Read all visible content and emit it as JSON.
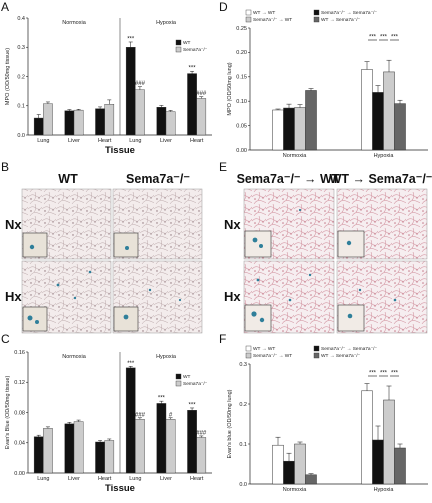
{
  "panels": {
    "A": "A",
    "B": "B",
    "C": "C",
    "D": "D",
    "E": "E",
    "F": "F"
  },
  "micro": {
    "B": {
      "col_labels": [
        "WT",
        "Sema7a⁻/⁻"
      ],
      "row_labels": [
        "Nx",
        "Hx"
      ]
    },
    "E": {
      "col_labels": [
        "Sema7a⁻/⁻ → WT",
        "WT → Sema7a⁻/⁻"
      ],
      "row_labels": [
        "Nx",
        "Hx"
      ]
    }
  },
  "colors": {
    "black": "#111111",
    "light_gray": "#cccccc",
    "white": "#ffffff",
    "dark_gray": "#666666"
  },
  "chart_data": [
    {
      "id": "A",
      "type": "bar",
      "ylabel": "MPO (OD/50mg tissue)",
      "xlabel": "Tissue",
      "ylim": [
        0,
        0.4
      ],
      "yticks": [
        "0.0",
        "0.1",
        "0.2",
        "0.3",
        "0.4"
      ],
      "groups": [
        "Normoxia",
        "Hypoxia"
      ],
      "categories": [
        "Lung",
        "Liver",
        "Heart",
        "Lung",
        "Liver",
        "Heart"
      ],
      "series": [
        {
          "name": "WT",
          "values": [
            0.058,
            0.083,
            0.09,
            0.3,
            0.095,
            0.21
          ],
          "errors": [
            0.012,
            0.004,
            0.006,
            0.018,
            0.006,
            0.008
          ],
          "labels": [
            "",
            "",
            "",
            "***",
            "",
            "***"
          ]
        },
        {
          "name": "Sema7a⁻/⁻",
          "values": [
            0.107,
            0.085,
            0.105,
            0.155,
            0.08,
            0.125
          ],
          "errors": [
            0.006,
            0.003,
            0.015,
            0.01,
            0.004,
            0.006
          ],
          "labels": [
            "",
            "",
            "",
            "###",
            "",
            "###"
          ]
        }
      ]
    },
    {
      "id": "C",
      "type": "bar",
      "ylabel": "Evan’s Blue (OD/50mg tissue)",
      "xlabel": "Tissue",
      "ylim": [
        0,
        0.16
      ],
      "yticks": [
        "0.00",
        "0.04",
        "0.08",
        "0.12",
        "0.16"
      ],
      "groups": [
        "Normoxia",
        "Hypoxia"
      ],
      "categories": [
        "Lung",
        "Liver",
        "Heart",
        "Lung",
        "Liver",
        "Heart"
      ],
      "series": [
        {
          "name": "WT",
          "values": [
            0.048,
            0.065,
            0.041,
            0.139,
            0.092,
            0.083
          ],
          "errors": [
            0.002,
            0.002,
            0.002,
            0.002,
            0.003,
            0.003
          ],
          "labels": [
            "",
            "",
            "",
            "***",
            "***",
            "***"
          ]
        },
        {
          "name": "Sema7a⁻/⁻",
          "values": [
            0.059,
            0.068,
            0.043,
            0.071,
            0.071,
            0.047
          ],
          "errors": [
            0.002,
            0.002,
            0.002,
            0.002,
            0.002,
            0.002
          ],
          "labels": [
            "",
            "",
            "",
            "###",
            "#",
            "###"
          ]
        }
      ]
    },
    {
      "id": "D",
      "type": "bar",
      "ylabel": "MPO (OD/50mg lung)",
      "ylim": [
        0,
        0.25
      ],
      "yticks": [
        "0.00",
        "0.05",
        "0.10",
        "0.15",
        "0.20",
        "0.25"
      ],
      "categories": [
        "Normoxia",
        "Hypoxia"
      ],
      "series": [
        {
          "name": "WT → WT",
          "values": [
            0.082,
            0.165
          ],
          "errors": [
            0.002,
            0.016
          ]
        },
        {
          "name": "Sema7a⁻/⁻ → Sema7a⁻/⁻",
          "values": [
            0.086,
            0.118
          ],
          "errors": [
            0.008,
            0.014
          ]
        },
        {
          "name": "Sema7a⁻/⁻ → WT",
          "values": [
            0.087,
            0.16
          ],
          "errors": [
            0.006,
            0.024
          ]
        },
        {
          "name": "WT → Sema7a⁻/⁻",
          "values": [
            0.122,
            0.095
          ],
          "errors": [
            0.004,
            0.007
          ]
        }
      ],
      "brackets": [
        "***",
        "***",
        "***"
      ]
    },
    {
      "id": "F",
      "type": "bar",
      "ylabel": "Evan’s blue (OD/50mg lung)",
      "ylim": [
        0,
        0.3
      ],
      "yticks": [
        "0.0",
        "0.1",
        "0.2",
        "0.3"
      ],
      "categories": [
        "Normoxia",
        "Hypoxia"
      ],
      "series": [
        {
          "name": "WT → WT",
          "values": [
            0.097,
            0.233
          ],
          "errors": [
            0.02,
            0.018
          ]
        },
        {
          "name": "Sema7a⁻/⁻ → Sema7a⁻/⁻",
          "values": [
            0.057,
            0.11
          ],
          "errors": [
            0.02,
            0.035
          ]
        },
        {
          "name": "Sema7a⁻/⁻ → WT",
          "values": [
            0.1,
            0.21
          ],
          "errors": [
            0.005,
            0.035
          ]
        },
        {
          "name": "WT → Sema7a⁻/⁻",
          "values": [
            0.023,
            0.09
          ],
          "errors": [
            0.003,
            0.01
          ]
        }
      ],
      "brackets": [
        "***",
        "***",
        "***"
      ]
    }
  ]
}
